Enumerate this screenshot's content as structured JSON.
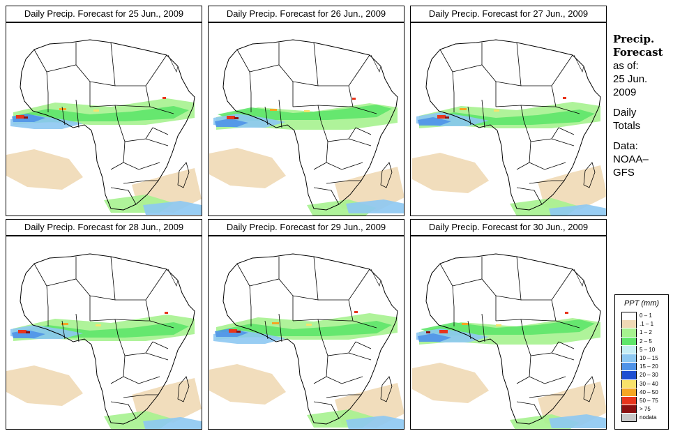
{
  "panels": [
    {
      "title": "Daily Precip. Forecast for  25 Jun., 2009"
    },
    {
      "title": "Daily Precip. Forecast for  26 Jun., 2009"
    },
    {
      "title": "Daily Precip. Forecast for  27 Jun., 2009"
    },
    {
      "title": "Daily Precip. Forecast for  28 Jun., 2009"
    },
    {
      "title": "Daily Precip. Forecast for  29 Jun., 2009"
    },
    {
      "title": "Daily Precip. Forecast for  30 Jun., 2009"
    }
  ],
  "sidebar": {
    "title_line1": "Precip.",
    "title_line2": "Forecast",
    "asof_label": "as of:",
    "asof_date1": "25 Jun.",
    "asof_date2": "2009",
    "totals1": "Daily",
    "totals2": "Totals",
    "data1": "Data:",
    "data2": "NOAA–",
    "data3": "GFS"
  },
  "legend": {
    "title": "PPT (mm)",
    "items": [
      {
        "label": "0 – 1",
        "color": "#ffffff"
      },
      {
        "label": ".1 – 1",
        "color": "#f0d9b5"
      },
      {
        "label": "1 – 2",
        "color": "#a6f28f"
      },
      {
        "label": "2 – 5",
        "color": "#5ee66a"
      },
      {
        "label": "5 – 10",
        "color": "#c6eef5"
      },
      {
        "label": "10 – 15",
        "color": "#8dc8f2"
      },
      {
        "label": "15 – 20",
        "color": "#4f93e8"
      },
      {
        "label": "20 – 30",
        "color": "#1f4fd1"
      },
      {
        "label": "30 – 40",
        "color": "#f7e26b"
      },
      {
        "label": "40 – 50",
        "color": "#f5a623"
      },
      {
        "label": "50 – 75",
        "color": "#e8351c"
      },
      {
        "label": "> 75",
        "color": "#8b1010"
      },
      {
        "label": "nodata",
        "color": "#c8c8c8"
      }
    ]
  }
}
